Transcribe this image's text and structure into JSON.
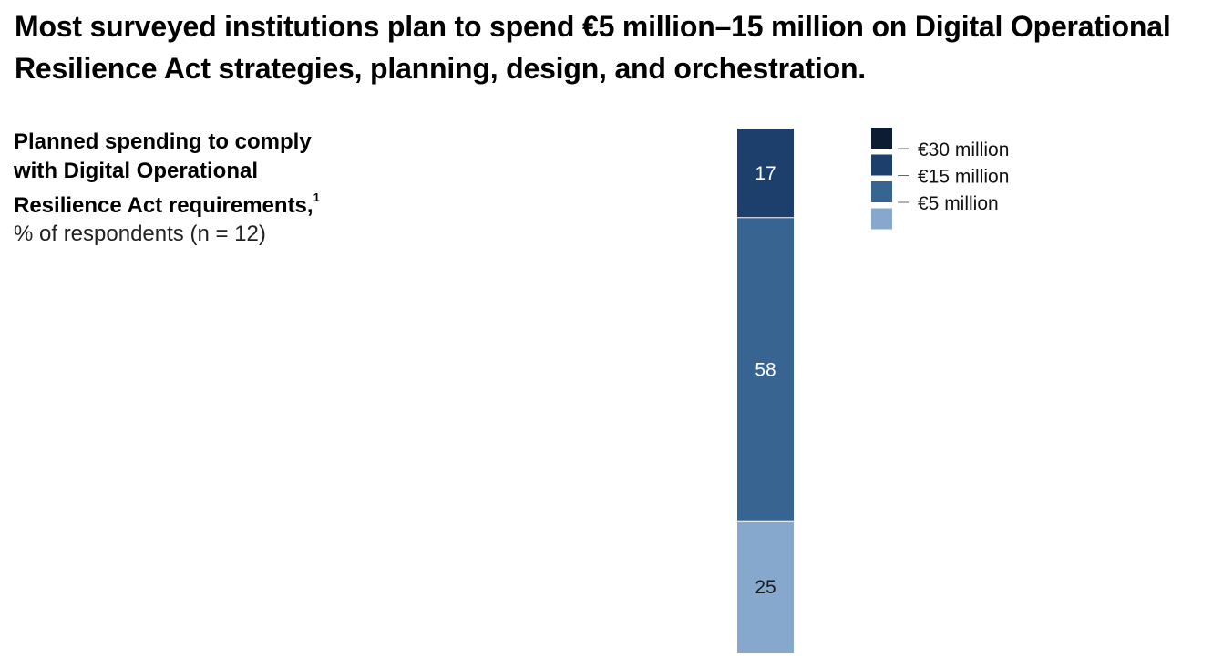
{
  "headline": "Most surveyed institutions plan to spend €5 million–15 million on Digital Operational Resilience Act strategies, planning, design, and orchestration.",
  "chart_label": {
    "title": "Planned spending to comply with Digital Operational Resilience Act requirements,",
    "footnote_marker": "1",
    "subtitle": "% of respondents (n = 12)"
  },
  "chart_data": {
    "type": "bar",
    "stacked": true,
    "orientation": "vertical",
    "title": "Planned spending to comply with Digital Operational Resilience Act requirements,",
    "ylabel": "% of respondents (n = 12)",
    "ylim": [
      0,
      100
    ],
    "grid": false,
    "legend_position": "top-right",
    "series": [
      {
        "name": "€30 million",
        "value": 0,
        "label": "",
        "color": "#0b1c33",
        "label_color": "#ffffff"
      },
      {
        "name": "€15 million",
        "value": 17,
        "label": "17",
        "color": "#1d3f6b",
        "label_color": "#ffffff"
      },
      {
        "name": "€5 million",
        "value": 58,
        "label": "58",
        "color": "#386491",
        "label_color": "#ffffff"
      },
      {
        "name": "",
        "value": 25,
        "label": "25",
        "color": "#86a8cc",
        "label_color": "#1a1a1a"
      }
    ]
  }
}
